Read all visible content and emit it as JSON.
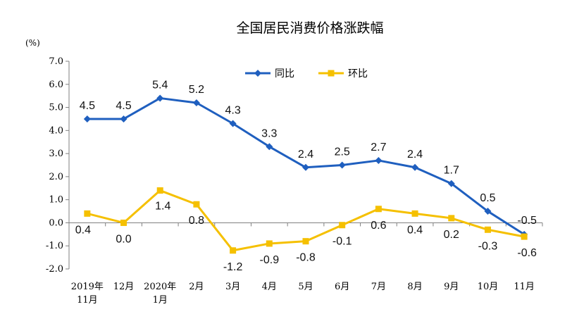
{
  "chart_data": {
    "type": "line",
    "title": "全国居民消费价格涨跌幅",
    "ylabel": "(%)",
    "ylim": [
      -2.0,
      7.0
    ],
    "yticks": [
      "7.0",
      "6.0",
      "5.0",
      "4.0",
      "3.0",
      "2.0",
      "1.0",
      "0.0",
      "-1.0",
      "-2.0"
    ],
    "categories": [
      [
        "2019年",
        "11月"
      ],
      [
        "12月"
      ],
      [
        "2020年",
        "1月"
      ],
      [
        "2月"
      ],
      [
        "3月"
      ],
      [
        "4月"
      ],
      [
        "5月"
      ],
      [
        "6月"
      ],
      [
        "7月"
      ],
      [
        "8月"
      ],
      [
        "9月"
      ],
      [
        "10月"
      ],
      [
        "11月"
      ]
    ],
    "legend_position": "top-center",
    "grid": false,
    "series": [
      {
        "name": "同比",
        "color": "#1f5fbf",
        "marker": "diamond",
        "values": [
          4.5,
          4.5,
          5.4,
          5.2,
          4.3,
          3.3,
          2.4,
          2.5,
          2.7,
          2.4,
          1.7,
          0.5,
          -0.5
        ],
        "labels": [
          "4.5",
          "4.5",
          "5.4",
          "5.2",
          "4.3",
          "3.3",
          "2.4",
          "2.5",
          "2.7",
          "2.4",
          "1.7",
          "0.5",
          "-0.5"
        ]
      },
      {
        "name": "环比",
        "color": "#f5c000",
        "marker": "square",
        "values": [
          0.4,
          0.0,
          1.4,
          0.8,
          -1.2,
          -0.9,
          -0.8,
          -0.1,
          0.6,
          0.4,
          0.2,
          -0.3,
          -0.6
        ],
        "labels": [
          "0.4",
          "0.0",
          "1.4",
          "0.8",
          "-1.2",
          "-0.9",
          "-0.8",
          "-0.1",
          "0.6",
          "0.4",
          "0.2",
          "-0.3",
          "-0.6"
        ]
      }
    ]
  }
}
